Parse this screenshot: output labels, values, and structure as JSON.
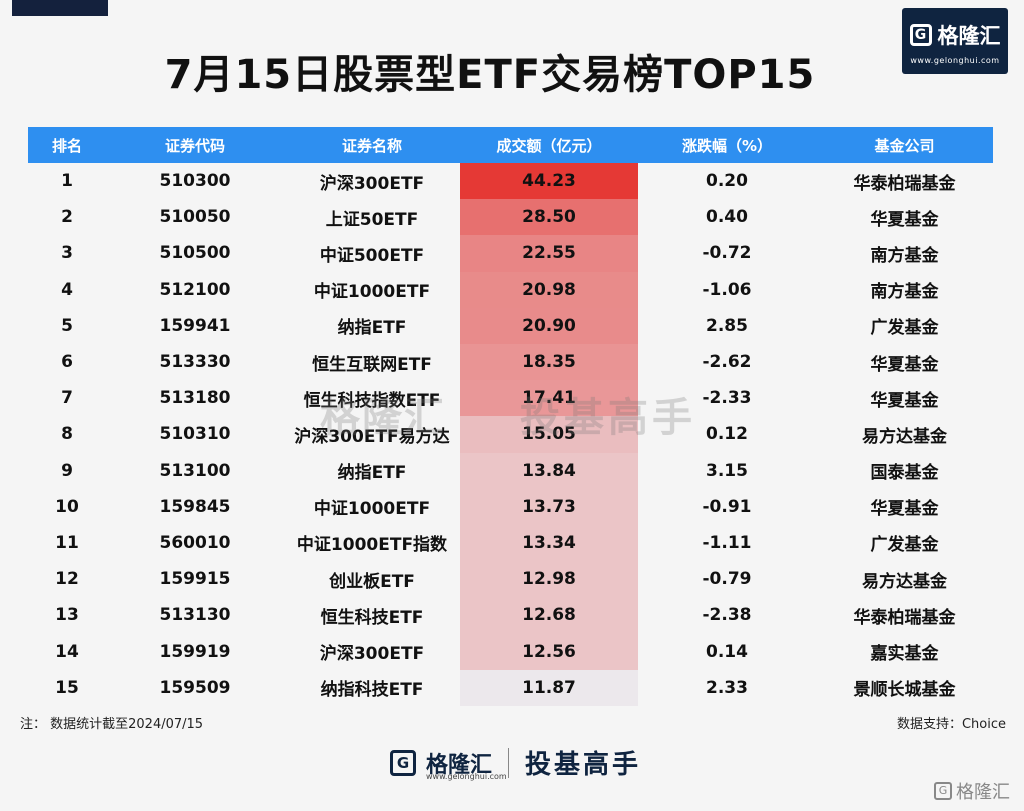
{
  "title": "7月15日股票型ETF交易榜TOP15",
  "logo": {
    "name": "格隆汇",
    "url": "www.gelonghui.com"
  },
  "table": {
    "headers": [
      "排名",
      "证券代码",
      "证券名称",
      "成交额（亿元）",
      "涨跌幅（%）",
      "基金公司"
    ],
    "rows": [
      {
        "rank": "1",
        "code": "510300",
        "name": "沪深300ETF",
        "amount": "44.23",
        "change": "0.20",
        "company": "华泰柏瑞基金",
        "dir": "up"
      },
      {
        "rank": "2",
        "code": "510050",
        "name": "上证50ETF",
        "amount": "28.50",
        "change": "0.40",
        "company": "华夏基金",
        "dir": "up"
      },
      {
        "rank": "3",
        "code": "510500",
        "name": "中证500ETF",
        "amount": "22.55",
        "change": "-0.72",
        "company": "南方基金",
        "dir": "down"
      },
      {
        "rank": "4",
        "code": "512100",
        "name": "中证1000ETF",
        "amount": "20.98",
        "change": "-1.06",
        "company": "南方基金",
        "dir": "down"
      },
      {
        "rank": "5",
        "code": "159941",
        "name": "纳指ETF",
        "amount": "20.90",
        "change": "2.85",
        "company": "广发基金",
        "dir": "up"
      },
      {
        "rank": "6",
        "code": "513330",
        "name": "恒生互联网ETF",
        "amount": "18.35",
        "change": "-2.62",
        "company": "华夏基金",
        "dir": "down"
      },
      {
        "rank": "7",
        "code": "513180",
        "name": "恒生科技指数ETF",
        "amount": "17.41",
        "change": "-2.33",
        "company": "华夏基金",
        "dir": "down"
      },
      {
        "rank": "8",
        "code": "510310",
        "name": "沪深300ETF易方达",
        "amount": "15.05",
        "change": "0.12",
        "company": "易方达基金",
        "dir": "up"
      },
      {
        "rank": "9",
        "code": "513100",
        "name": "纳指ETF",
        "amount": "13.84",
        "change": "3.15",
        "company": "国泰基金",
        "dir": "up"
      },
      {
        "rank": "10",
        "code": "159845",
        "name": "中证1000ETF",
        "amount": "13.73",
        "change": "-0.91",
        "company": "华夏基金",
        "dir": "down"
      },
      {
        "rank": "11",
        "code": "560010",
        "name": "中证1000ETF指数",
        "amount": "13.34",
        "change": "-1.11",
        "company": "广发基金",
        "dir": "down"
      },
      {
        "rank": "12",
        "code": "159915",
        "name": "创业板ETF",
        "amount": "12.98",
        "change": "-0.79",
        "company": "易方达基金",
        "dir": "down"
      },
      {
        "rank": "13",
        "code": "513130",
        "name": "恒生科技ETF",
        "amount": "12.68",
        "change": "-2.38",
        "company": "华泰柏瑞基金",
        "dir": "down"
      },
      {
        "rank": "14",
        "code": "159919",
        "name": "沪深300ETF",
        "amount": "12.56",
        "change": "0.14",
        "company": "嘉实基金",
        "dir": "up"
      },
      {
        "rank": "15",
        "code": "159509",
        "name": "纳指科技ETF",
        "amount": "11.87",
        "change": "2.33",
        "company": "景顺长城基金",
        "dir": "up"
      }
    ]
  },
  "note": "注：  数据统计截至2024/07/15",
  "source": "数据支持：Choice",
  "watermark": {
    "brand": "格隆汇",
    "slogan": "投基高手"
  },
  "footer": {
    "brand": "格隆汇",
    "url": "www.gelonghui.com",
    "slogan": "投基高手"
  },
  "bottom_watermark": "格隆汇",
  "colors": {
    "header_bg": "#2e8ff0",
    "up": "#e11d1d",
    "down": "#1a8a2a",
    "heat_max": "#e53935",
    "brand": "#0f2440"
  }
}
